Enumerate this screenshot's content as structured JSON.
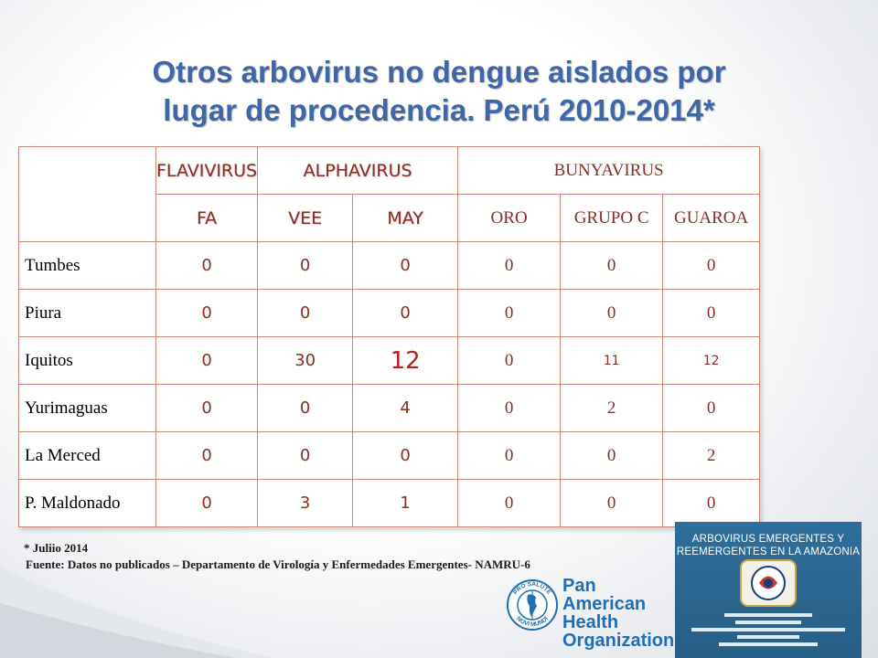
{
  "title": {
    "line1": "Otros arbovirus no dengue aislados por",
    "line2": "lugar de procedencia. Perú 2010-2014*"
  },
  "table": {
    "groups": [
      "FLAVIVIRUS",
      "ALPHAVIRUS",
      "BUNYAVIRUS"
    ],
    "columns": [
      "FA",
      "VEE",
      "MAY",
      "ORO",
      "GRUPO C",
      "GUAROA"
    ],
    "rows": [
      {
        "label": "Tumbes",
        "values": [
          "0",
          "0",
          "0",
          "0",
          "0",
          "0"
        ]
      },
      {
        "label": "Piura",
        "values": [
          "0",
          "0",
          "0",
          "0",
          "0",
          "0"
        ]
      },
      {
        "label": "Iquitos",
        "values": [
          "0",
          "30",
          "12",
          "0",
          "11",
          "12"
        ]
      },
      {
        "label": "Yurimaguas",
        "values": [
          "0",
          "0",
          "4",
          "0",
          "2",
          "0"
        ]
      },
      {
        "label": "La Merced",
        "values": [
          "0",
          "0",
          "0",
          "0",
          "0",
          "2"
        ]
      },
      {
        "label": "P. Maldonado",
        "values": [
          "0",
          "3",
          "1",
          "0",
          "0",
          "0"
        ]
      }
    ]
  },
  "notes": {
    "date": "* Juliio 2014",
    "source": "Fuente: Datos no publicados – Departamento de Virología y Enfermedades Emergentes- NAMRU-6"
  },
  "logo": {
    "org_line1": "Pan American",
    "org_line2": "Health",
    "org_line3": "Organization",
    "ring_top": "PRO SALUTE",
    "ring_bottom": "NOVI MUNDI"
  },
  "book": {
    "title_line1": "ARBOVIRUS EMERGENTES Y",
    "title_line2": "REEMERGENTES EN LA AMAZONIA"
  },
  "colors": {
    "title": "#3e66a8",
    "header_text": "#8a2d24",
    "grid": "#c98a7c",
    "highlight": "#b8201e",
    "paho_blue": "#1e6fb6",
    "book_bg": "#2f6e9a"
  }
}
